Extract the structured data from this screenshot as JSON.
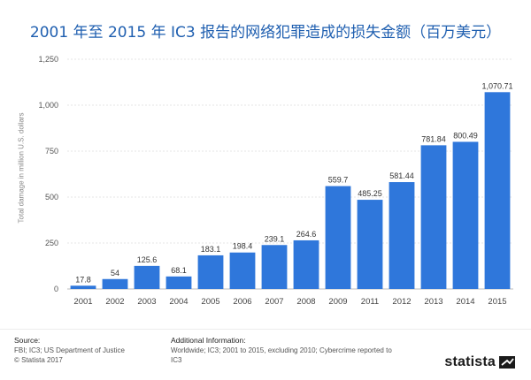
{
  "title": "2001 年至 2015 年 IC3 报告的网络犯罪造成的损失金额（百万美元）",
  "footer": {
    "source_heading": "Source:",
    "source_line1": "FBI; IC3; US Department of Justice",
    "source_line2": "© Statista 2017",
    "additional_heading": "Additional Information:",
    "additional_text": "Worldwide; IC3; 2001 to 2015, excluding 2010; Cybercrime reported to IC3",
    "brand": "statista"
  },
  "chart_data": {
    "type": "bar",
    "ylabel": "Total damage in million U.S. dollars",
    "xlabel": "",
    "ylim": [
      0,
      1250
    ],
    "yticks": [
      0,
      250,
      500,
      750,
      1000,
      1250
    ],
    "ytick_labels": [
      "0",
      "250",
      "500",
      "750",
      "1,000",
      "1,250"
    ],
    "grid": true,
    "bar_color": "#2f77db",
    "categories": [
      "2001",
      "2002",
      "2003",
      "2004",
      "2005",
      "2006",
      "2007",
      "2008",
      "2009",
      "2011",
      "2012",
      "2013",
      "2014",
      "2015"
    ],
    "values": [
      17.8,
      54,
      125.6,
      68.1,
      183.1,
      198.4,
      239.1,
      264.6,
      559.7,
      485.25,
      581.44,
      781.84,
      800.49,
      1070.71
    ],
    "value_labels": [
      "17.8",
      "54",
      "125.6",
      "68.1",
      "183.1",
      "198.4",
      "239.1",
      "264.6",
      "559.7",
      "485.25",
      "581.44",
      "781.84",
      "800.49",
      "1,070.71"
    ]
  }
}
